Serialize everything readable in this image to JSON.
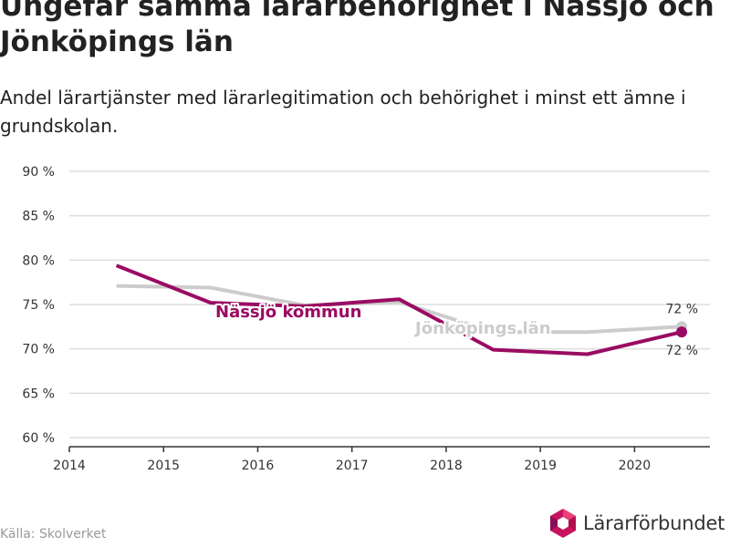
{
  "title": "Ungefär samma lärarbehörighet i Nässjö och\nJönköpings län",
  "subtitle": "Andel lärartjänster med lärarlegitimation och behörighet i minst ett ämne i grundskolan.",
  "source": "Källa: Skolverket",
  "brand": {
    "name": "Lärarförbundet",
    "icon": "hexagon-logo-icon"
  },
  "colors": {
    "nassjo": "#9a0b63",
    "lan": "#cccccc",
    "grid": "#dddddd",
    "axis": "#333333"
  },
  "chart_data": {
    "type": "line",
    "x_ticks": [
      "2014",
      "2015",
      "2016",
      "2017",
      "2018",
      "2019",
      "2020"
    ],
    "y_ticks": [
      "60 %",
      "65 %",
      "70 %",
      "75 %",
      "80 %",
      "85 %",
      "90 %"
    ],
    "xlim": [
      2014,
      2020.8
    ],
    "ylim": [
      60,
      90
    ],
    "grid": true,
    "series": [
      {
        "key": "lan",
        "name": "Jönköpings län",
        "x": [
          2014.5,
          2015.5,
          2016.5,
          2017.5,
          2018.5,
          2019.5,
          2020.5
        ],
        "y": [
          77.1,
          76.9,
          74.9,
          75.3,
          71.9,
          71.9,
          72.5
        ],
        "end_label": "72 %"
      },
      {
        "key": "nassjo",
        "name": "Nässjö kommun",
        "x": [
          2014.5,
          2015.5,
          2016.5,
          2017.5,
          2018.5,
          2019.5,
          2020.5
        ],
        "y": [
          79.4,
          75.2,
          74.8,
          75.6,
          69.9,
          69.4,
          71.9
        ],
        "end_label": "72 %"
      }
    ]
  }
}
